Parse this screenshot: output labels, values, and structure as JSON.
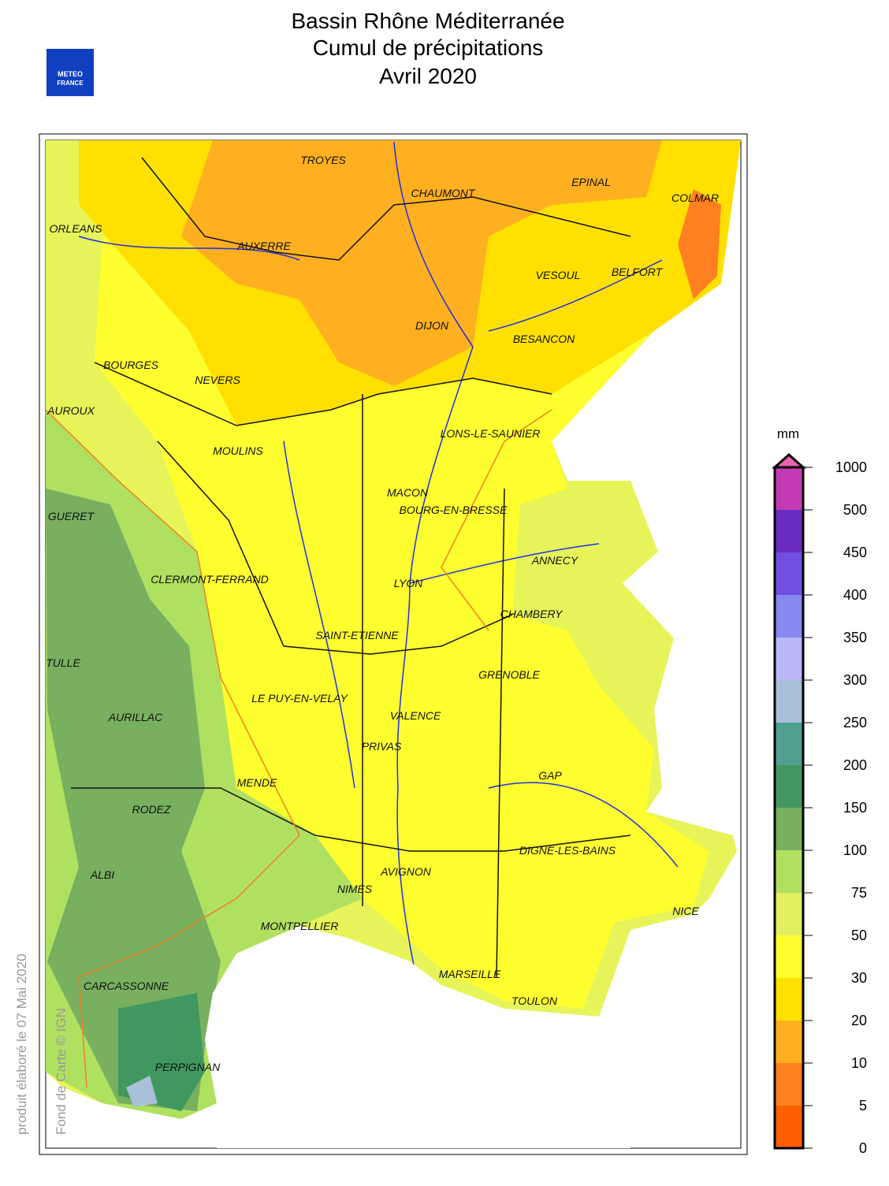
{
  "header": {
    "title_lines": [
      "Bassin Rhône Méditerranée",
      "Cumul de précipitations",
      "Avril 2020"
    ],
    "logo": [
      "METEO",
      "FRANCE"
    ]
  },
  "map": {
    "cities": [
      "TROYES",
      "CHAUMONT",
      "EPINAL",
      "COLMAR",
      "ORLEANS",
      "AUXERRE",
      "VESOUL",
      "BELFORT",
      "DIJON",
      "BESANCON",
      "BOURGES",
      "NEVERS",
      "AUROUX",
      "LONS-LE-SAUNIER",
      "MOULINS",
      "MACON",
      "BOURG-EN-BRESSE",
      "GUERET",
      "ANNECY",
      "CLERMONT-FERRAND",
      "LYON",
      "CHAMBERY",
      "SAINT-ETIENNE",
      "TULLE",
      "GRENOBLE",
      "LE PUY-EN-VELAY",
      "AURILLAC",
      "VALENCE",
      "PRIVAS",
      "GAP",
      "MENDE",
      "RODEZ",
      "DIGNE-LES-BAINS",
      "ALBI",
      "AVIGNON",
      "NIMES",
      "NICE",
      "MONTPELLIER",
      "MARSEILLE",
      "TOULON",
      "CARCASSONNE",
      "PERPIGNAN"
    ],
    "credits": [
      "produit élaboré le 07 Mai 2020",
      "Fond de Carte © IGN"
    ]
  },
  "legend": {
    "unit": "mm",
    "ticks": [
      1000,
      500,
      450,
      400,
      350,
      300,
      250,
      200,
      150,
      100,
      75,
      50,
      30,
      20,
      10,
      5,
      0
    ],
    "colors": [
      "#c43ab4",
      "#6a2cc0",
      "#7050e0",
      "#8888f0",
      "#b8b8f8",
      "#a8c0d8",
      "#50a090",
      "#409860",
      "#78b060",
      "#b0e060",
      "#e0f060",
      "#ffff30",
      "#ffe000",
      "#ffb020",
      "#ff8020",
      "#ff6000"
    ],
    "top_color": "#f060b0"
  }
}
